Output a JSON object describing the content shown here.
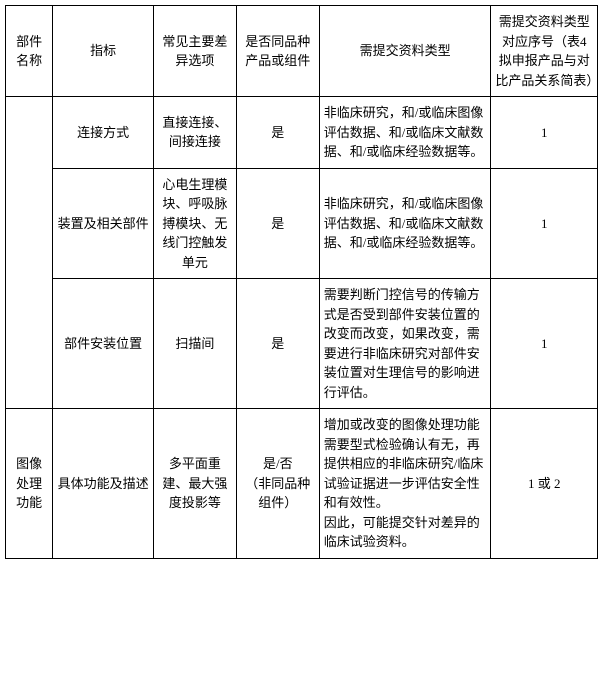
{
  "table": {
    "headers": {
      "col1": "部件名称",
      "col2": "指标",
      "col3": "常见主要差异选项",
      "col4": "是否同品种产品或组件",
      "col5": "需提交资料类型",
      "col6": "需提交资料类型对应序号（表4 拟申报产品与对比产品关系简表）"
    },
    "rows": [
      {
        "col1": "",
        "col2": "连接方式",
        "col3": "直接连接、间接连接",
        "col4": "是",
        "col5": "非临床研究，和/或临床图像评估数据、和/或临床文献数据、和/或临床经验数据等。",
        "col6": "1"
      },
      {
        "col1": "",
        "col2": "装置及相关部件",
        "col3": "心电生理模块、呼吸脉搏模块、无线门控触发单元",
        "col4": "是",
        "col5": "非临床研究，和/或临床图像评估数据、和/或临床文献数据、和/或临床经验数据等。",
        "col6": "1"
      },
      {
        "col1": "",
        "col2": "部件安装位置",
        "col3": "扫描间",
        "col4": "是",
        "col5": "需要判断门控信号的传输方式是否受到部件安装位置的改变而改变，如果改变，需要进行非临床研究对部件安装位置对生理信号的影响进行评估。",
        "col6": "1"
      },
      {
        "col1": "图像处理功能",
        "col2": "具体功能及描述",
        "col3": "多平面重建、最大强度投影等",
        "col4": "是/否\n（非同品种组件）",
        "col5": "增加或改变的图像处理功能需要型式检验确认有无，再提供相应的非临床研究/临床试验证据进一步评估安全性和有效性。\n因此，可能提交针对差异的临床试验资料。",
        "col6": "1 或 2"
      }
    ],
    "styling": {
      "border_color": "#000000",
      "background_color": "#ffffff",
      "text_color": "#000000",
      "font_size": 13,
      "font_family": "SimSun",
      "line_height": 1.5
    }
  }
}
